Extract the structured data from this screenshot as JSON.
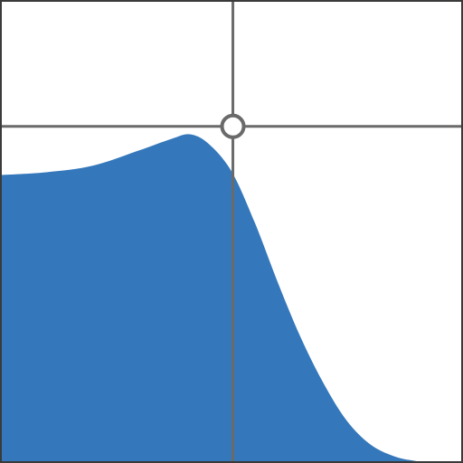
{
  "colors": {
    "background": "#ffffff",
    "frame": "#3a3a3a",
    "crosshair": "#6a6a6a",
    "curve_fill": "#3478bb",
    "handle_fill": "#ffffff",
    "handle_stroke": "#6a6a6a"
  },
  "response_curve": {
    "shape": "low-pass with resonance peak",
    "x_range": [
      0,
      1
    ],
    "y_range": [
      0,
      1
    ],
    "points": [
      [
        0.0,
        0.622
      ],
      [
        0.1,
        0.628
      ],
      [
        0.2,
        0.642
      ],
      [
        0.3,
        0.675
      ],
      [
        0.37,
        0.7
      ],
      [
        0.41,
        0.71
      ],
      [
        0.45,
        0.69
      ],
      [
        0.5,
        0.63
      ],
      [
        0.55,
        0.52
      ],
      [
        0.6,
        0.39
      ],
      [
        0.65,
        0.27
      ],
      [
        0.7,
        0.17
      ],
      [
        0.75,
        0.09
      ],
      [
        0.8,
        0.04
      ],
      [
        0.85,
        0.015
      ],
      [
        0.9,
        0.004
      ],
      [
        0.95,
        0.0
      ],
      [
        1.0,
        0.0
      ]
    ]
  },
  "cutoff_handle": {
    "icon": "circle-handle-icon",
    "cutoff": 0.503,
    "resonance": 0.727
  }
}
